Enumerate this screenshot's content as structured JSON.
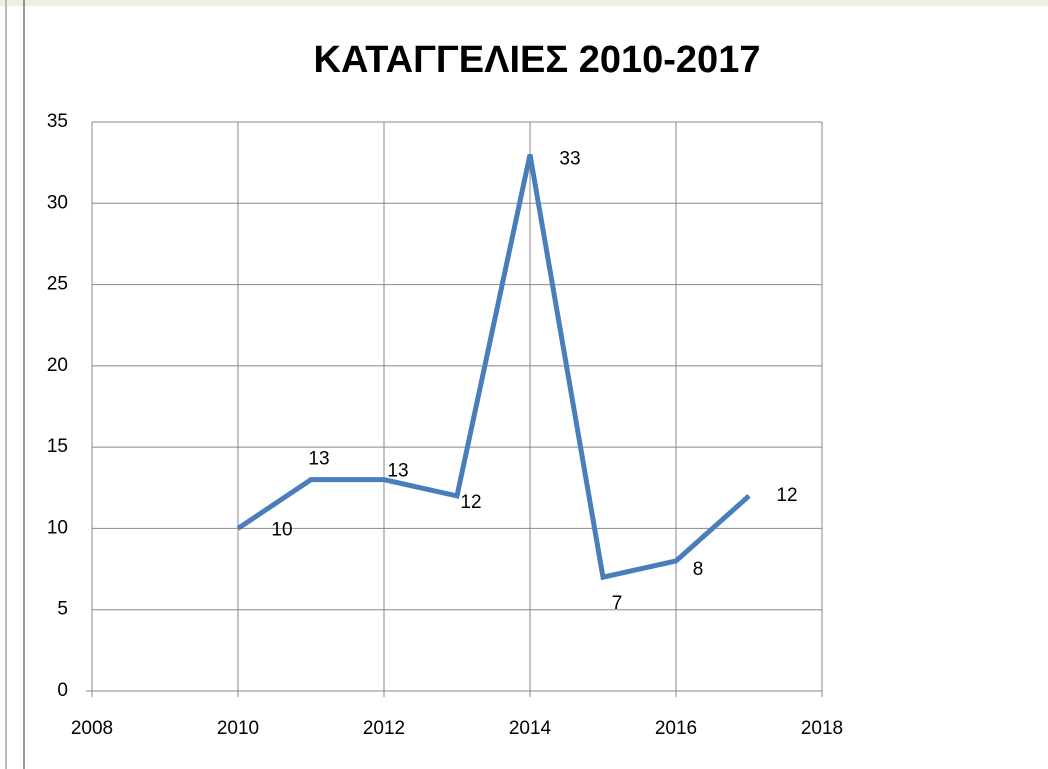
{
  "chart_data": {
    "type": "line",
    "title": "ΚΑΤΑΓΓΕΛΙΕΣ 2010-2017",
    "x": [
      2010,
      2011,
      2012,
      2013,
      2014,
      2015,
      2016,
      2017
    ],
    "values": [
      10,
      13,
      13,
      12,
      33,
      7,
      8,
      12
    ],
    "color": "#4a7ebb",
    "xlim": [
      2008,
      2018
    ],
    "xticks": [
      2008,
      2010,
      2012,
      2014,
      2016,
      2018
    ],
    "ylim": [
      0,
      35
    ],
    "yticks": [
      0,
      5,
      10,
      15,
      20,
      25,
      30,
      35
    ],
    "grid": true
  }
}
